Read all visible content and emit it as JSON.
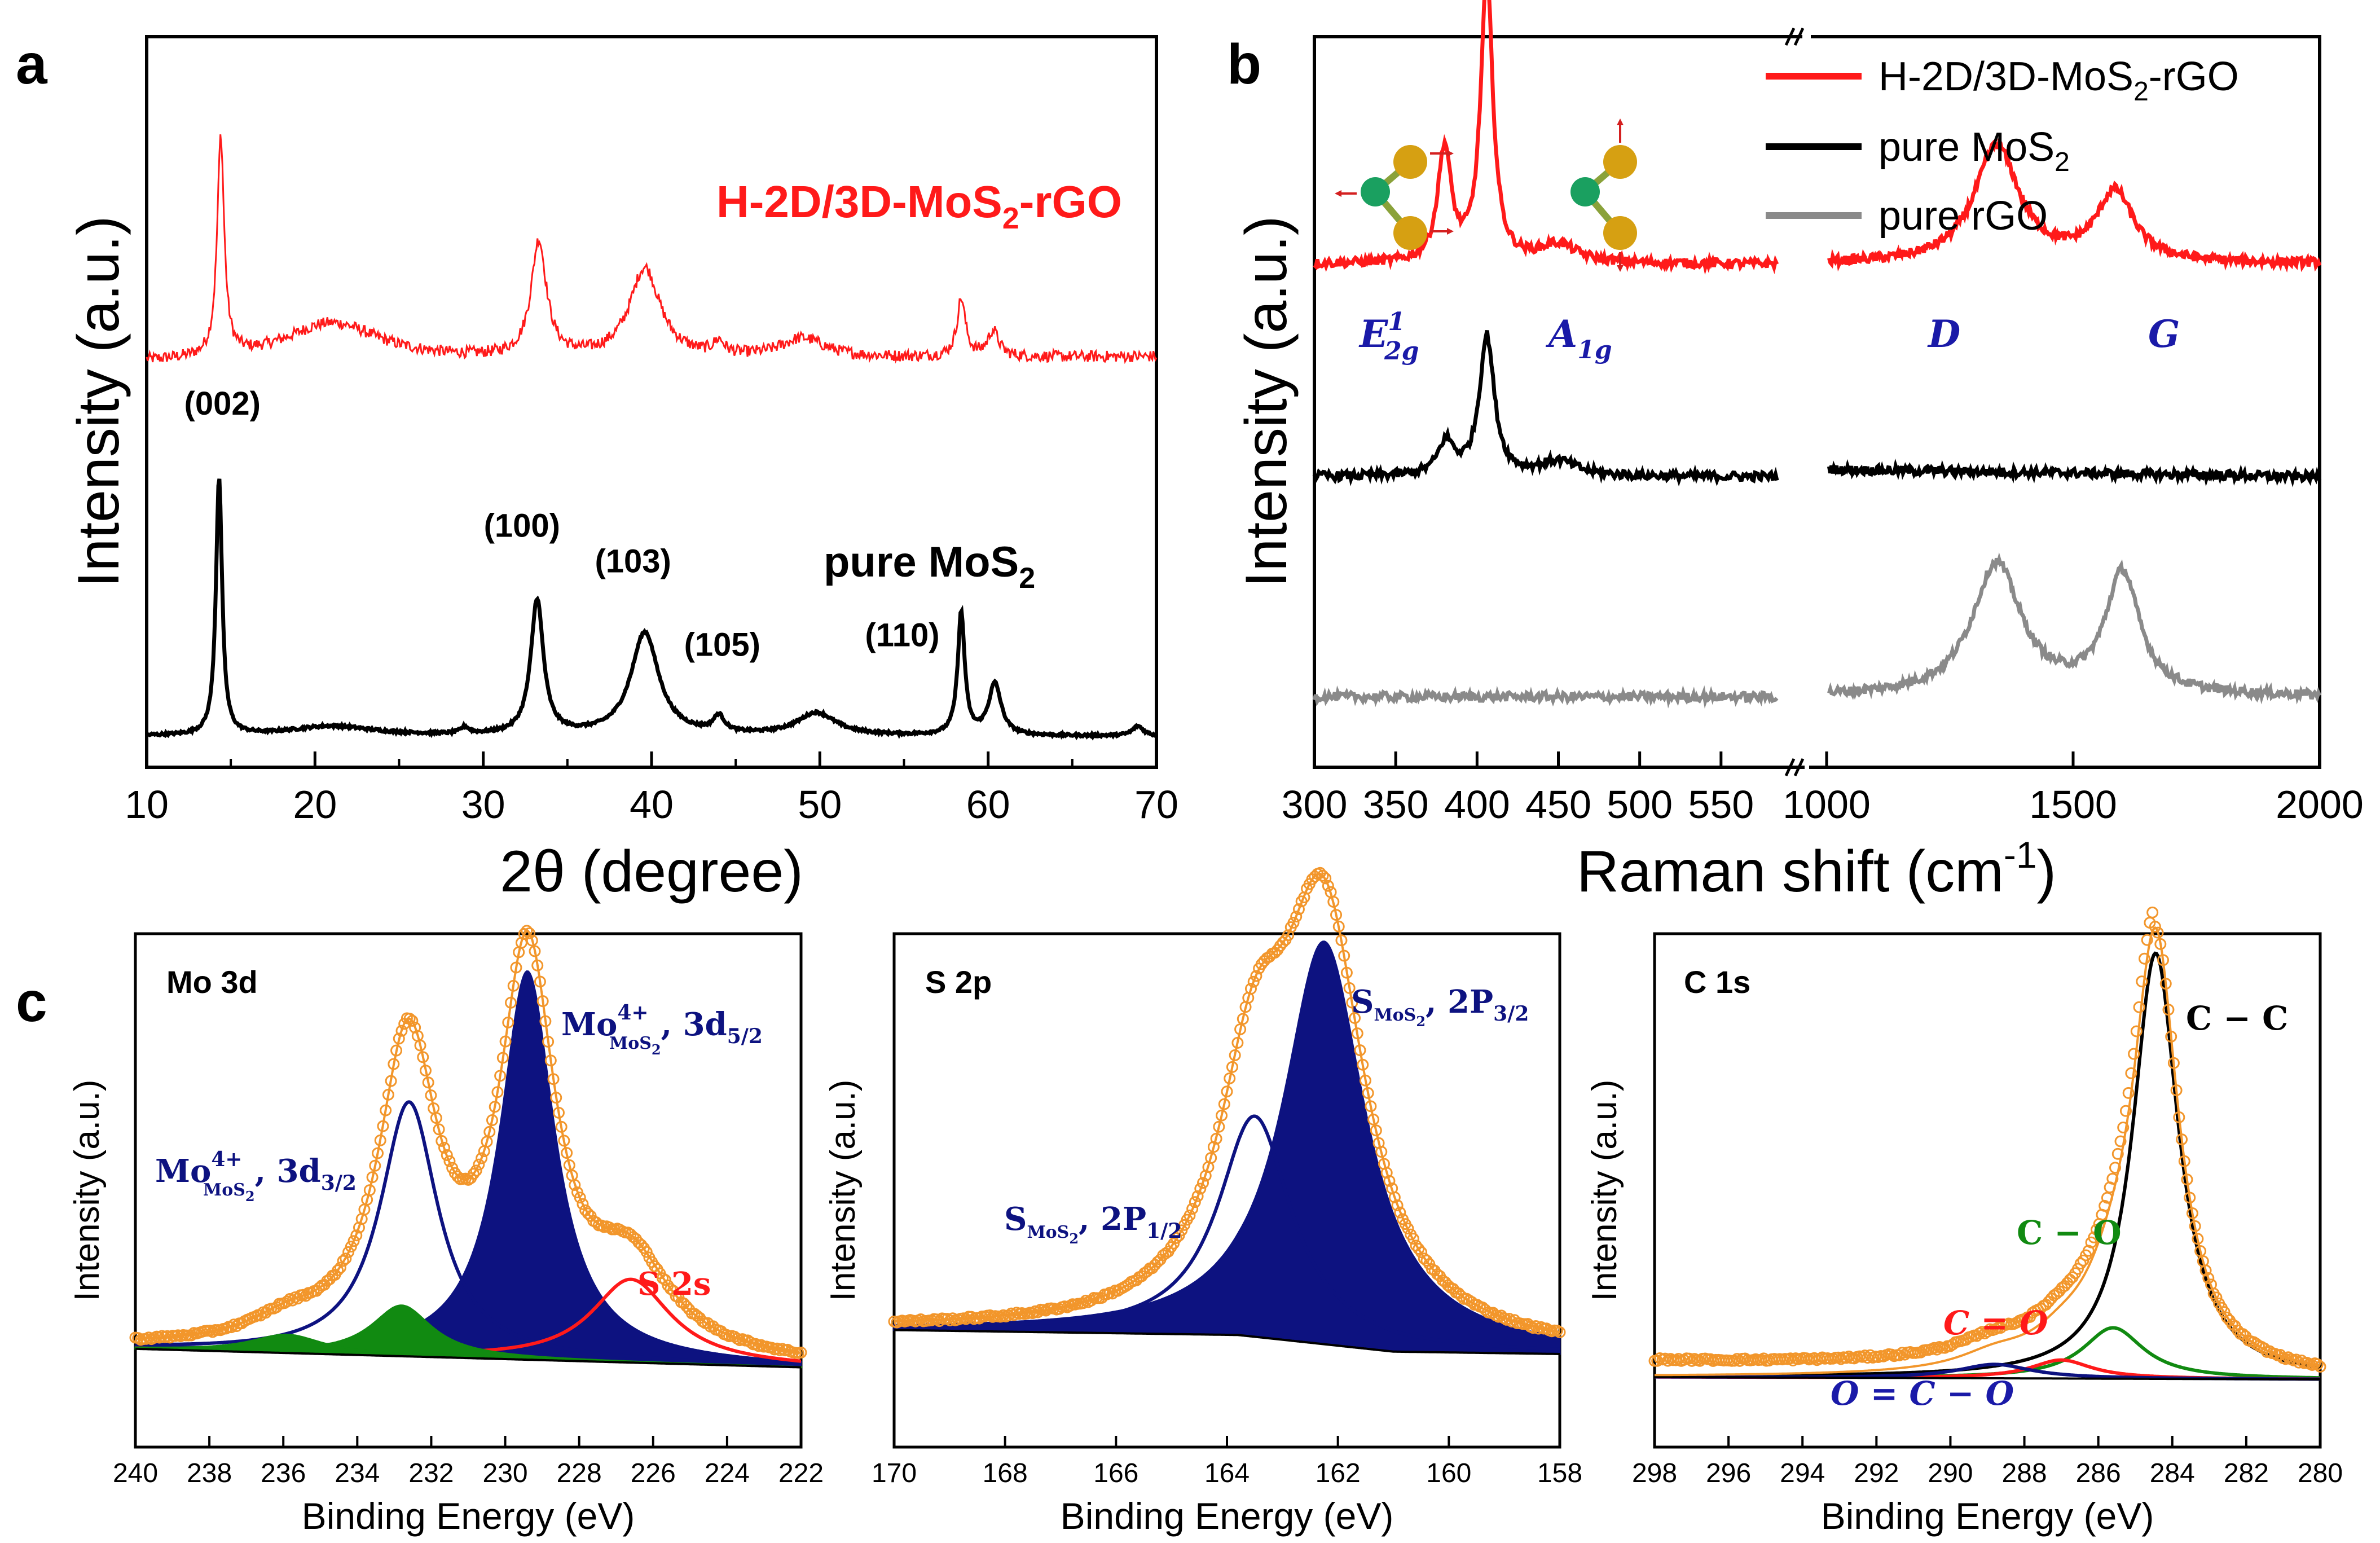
{
  "figure": {
    "panel_labels": {
      "a": "a",
      "b": "b",
      "c": "c"
    }
  },
  "colors": {
    "red": "#ff1a1a",
    "black": "#000000",
    "gray": "#8a8a8a",
    "navy": "#0d1280",
    "green": "#118a11",
    "orange": "#f2962b",
    "label_blue": "#1a1aa8"
  },
  "chart_data": [
    {
      "id": "a",
      "type": "line",
      "xlabel": "2θ (degree)",
      "ylabel": "Intensity (a.u.)",
      "xlim": [
        10,
        70
      ],
      "xticks": [
        "10",
        "20",
        "30",
        "40",
        "50",
        "60",
        "70"
      ],
      "series": [
        {
          "name": "H-2D/3D-MoS2-rGO",
          "label_main": "H-2D/3D-MoS",
          "label_sub": "2",
          "label_tail": "-rGO",
          "color": "#ff1a1a",
          "peaks": [
            [
              14.4,
              0.34,
              0.25
            ],
            [
              33.3,
              0.18,
              0.55
            ],
            [
              39.6,
              0.14,
              1.1
            ],
            [
              58.4,
              0.09,
              0.3
            ],
            [
              60.3,
              0.04,
              0.4
            ],
            [
              44.0,
              0.02,
              0.4
            ],
            [
              49.0,
              0.03,
              1.6
            ],
            [
              21.0,
              0.06,
              3.5
            ]
          ],
          "baseline": [
            0.58,
            0.59
          ],
          "offset": 0.0
        },
        {
          "name": "pure MoS2",
          "label_main": "pure MoS",
          "label_sub": "2",
          "label_tail": "",
          "color": "#000000",
          "peaks": [
            [
              14.3,
              0.4,
              0.22
            ],
            [
              33.2,
              0.21,
              0.45
            ],
            [
              39.6,
              0.16,
              1.0
            ],
            [
              44.0,
              0.025,
              0.4
            ],
            [
              49.8,
              0.035,
              1.4
            ],
            [
              58.4,
              0.19,
              0.25
            ],
            [
              60.4,
              0.08,
              0.45
            ],
            [
              68.9,
              0.015,
              0.4
            ],
            [
              21.0,
              0.015,
              3.0
            ],
            [
              28.9,
              0.01,
              0.3
            ]
          ],
          "baseline": [
            0.0,
            0.0
          ],
          "offset": 0.0
        }
      ],
      "annotations": [
        {
          "text": "(002)",
          "x": 14.5,
          "y": 0.5
        },
        {
          "text": "(100)",
          "x": 32.3,
          "y": 0.31
        },
        {
          "text": "(103)",
          "x": 38.9,
          "y": 0.255
        },
        {
          "text": "(105)",
          "x": 44.2,
          "y": 0.125
        },
        {
          "text": "(110)",
          "x": 54.9,
          "y": 0.14
        }
      ]
    },
    {
      "id": "b",
      "type": "line",
      "xlabel_main": "Raman shift (cm",
      "xlabel_sup": "-1",
      "xlabel_tail": ")",
      "ylabel": "Intensity (a.u.)",
      "segments": [
        {
          "xlim": [
            300,
            600
          ],
          "xticks": [
            "300",
            "350",
            "400",
            "450",
            "500",
            "550"
          ]
        },
        {
          "xlim": [
            1000,
            2000
          ],
          "xticks": [
            "1000",
            "1500",
            "2000"
          ]
        }
      ],
      "legend": [
        {
          "main": "H-2D/3D-MoS",
          "sub": "2",
          "tail": "-rGO",
          "color": "#ff1a1a"
        },
        {
          "main": "pure MoS",
          "sub": "2",
          "tail": "",
          "color": "#000000"
        },
        {
          "main": "pure rGO",
          "sub": "",
          "tail": "",
          "color": "#8a8a8a"
        }
      ],
      "series": [
        {
          "name": "H-2D/3D-MoS2-rGO",
          "color": "#ff1a1a",
          "base": 0.64,
          "peaks_low": [
            [
              380,
              0.155,
              5
            ],
            [
              406,
              0.39,
              4.5
            ],
            [
              450,
              0.025,
              14
            ]
          ],
          "peaks_high": [
            [
              1345,
              0.16,
              55
            ],
            [
              1585,
              0.095,
              45
            ]
          ]
        },
        {
          "name": "pure MoS2",
          "color": "#000000",
          "base": 0.35,
          "peaks_low": [
            [
              381,
              0.045,
              6
            ],
            [
              406,
              0.19,
              5.5
            ],
            [
              450,
              0.02,
              14
            ]
          ],
          "peaks_high": []
        },
        {
          "name": "pure rGO",
          "color": "#8a8a8a",
          "base": 0.05,
          "peaks_low": [],
          "peaks_high": [
            [
              1345,
              0.18,
              60
            ],
            [
              1600,
              0.165,
              42
            ]
          ]
        }
      ],
      "band_labels": [
        {
          "main": "E",
          "sup": "1",
          "sub": "2g"
        },
        {
          "main": "A",
          "sub": "1g"
        },
        {
          "main": "D"
        },
        {
          "main": "G"
        }
      ]
    },
    {
      "id": "c1",
      "type": "line",
      "title": "Mo 3d",
      "xlabel": "Binding Energy (eV)",
      "ylabel": "Intensity (a.u.)",
      "xlim": [
        240,
        222
      ],
      "xticks": [
        "240",
        "238",
        "236",
        "234",
        "232",
        "230",
        "228",
        "226",
        "224",
        "222"
      ],
      "components": [
        {
          "name": "Mo4+ 3d5/2",
          "center": 229.4,
          "height": 0.84,
          "fwhm": 0.9,
          "color": "#0d1280",
          "filled": true
        },
        {
          "name": "Mo4+ 3d3/2",
          "center": 232.6,
          "height": 0.55,
          "fwhm": 0.95,
          "color": "#0d1280",
          "filled": false
        },
        {
          "name": "S 2s",
          "center": 226.6,
          "height": 0.18,
          "fwhm": 1.3,
          "color": "#ff1a1a",
          "filled": false
        },
        {
          "name": "Mo6+",
          "center": 232.8,
          "height": 0.11,
          "fwhm": 1.0,
          "color": "#118a11",
          "filled": true
        },
        {
          "name": "Mo6+ b",
          "center": 235.9,
          "height": 0.04,
          "fwhm": 1.2,
          "color": "#118a11",
          "filled": true
        }
      ],
      "labels": [
        {
          "main": "Mo",
          "sup": "4+",
          "sub": "MoS",
          "subsub": "2",
          "tail": ", 3d",
          "tailsub": "3/2",
          "color": "#0d1280"
        },
        {
          "main": "Mo",
          "sup": "4+",
          "sub": "MoS",
          "subsub": "2",
          "tail": ", 3d",
          "tailsub": "5/2",
          "color": "#0d1280"
        },
        {
          "main": "S 2s",
          "color": "#ff1a1a"
        }
      ]
    },
    {
      "id": "c2",
      "type": "line",
      "title": "S 2p",
      "xlabel": "Binding Energy (eV)",
      "ylabel": "Intensity (a.u.)",
      "xlim": [
        170,
        158
      ],
      "xticks": [
        "170",
        "168",
        "166",
        "164",
        "162",
        "160",
        "158"
      ],
      "components": [
        {
          "name": "S 2p3/2",
          "center": 162.25,
          "height": 0.84,
          "fwhm": 0.9,
          "color": "#0d1280",
          "filled": true
        },
        {
          "name": "S 2p1/2",
          "center": 163.5,
          "height": 0.46,
          "fwhm": 0.8,
          "color": "#0d1280",
          "filled": false
        }
      ],
      "labels": [
        {
          "main": "S",
          "sub": "MoS",
          "subsub": "2",
          "tail": ", 2P",
          "tailsub": "1/2",
          "color": "#0d1280"
        },
        {
          "main": "S",
          "sub": "MoS",
          "subsub": "2",
          "tail": ", 2P",
          "tailsub": "3/2",
          "color": "#0d1280"
        }
      ]
    },
    {
      "id": "c3",
      "type": "line",
      "title": "C 1s",
      "xlabel": "Binding Energy (eV)",
      "ylabel": "Intensity (a.u.)",
      "xlim": [
        298,
        280
      ],
      "xticks": [
        "298",
        "296",
        "294",
        "292",
        "290",
        "288",
        "286",
        "284",
        "282",
        "280"
      ],
      "components": [
        {
          "name": "C-C",
          "center": 284.45,
          "height": 0.92,
          "fwhm": 0.75,
          "color": "#000000",
          "filled": false
        },
        {
          "name": "C-O",
          "center": 285.6,
          "height": 0.11,
          "fwhm": 1.0,
          "color": "#118a11",
          "filled": false
        },
        {
          "name": "C=O",
          "center": 287.0,
          "height": 0.04,
          "fwhm": 1.0,
          "color": "#ff1a1a",
          "filled": false
        },
        {
          "name": "O=C-O",
          "center": 288.8,
          "height": 0.03,
          "fwhm": 1.2,
          "color": "#0d1280",
          "filled": false
        }
      ],
      "labels": [
        {
          "text": "C − C",
          "color": "#000000"
        },
        {
          "text": "C − O",
          "color": "#118a11"
        },
        {
          "text": "C = O",
          "color": "#ff1a1a"
        },
        {
          "text": "O = C − O",
          "color": "#1a1aa8"
        }
      ]
    }
  ]
}
